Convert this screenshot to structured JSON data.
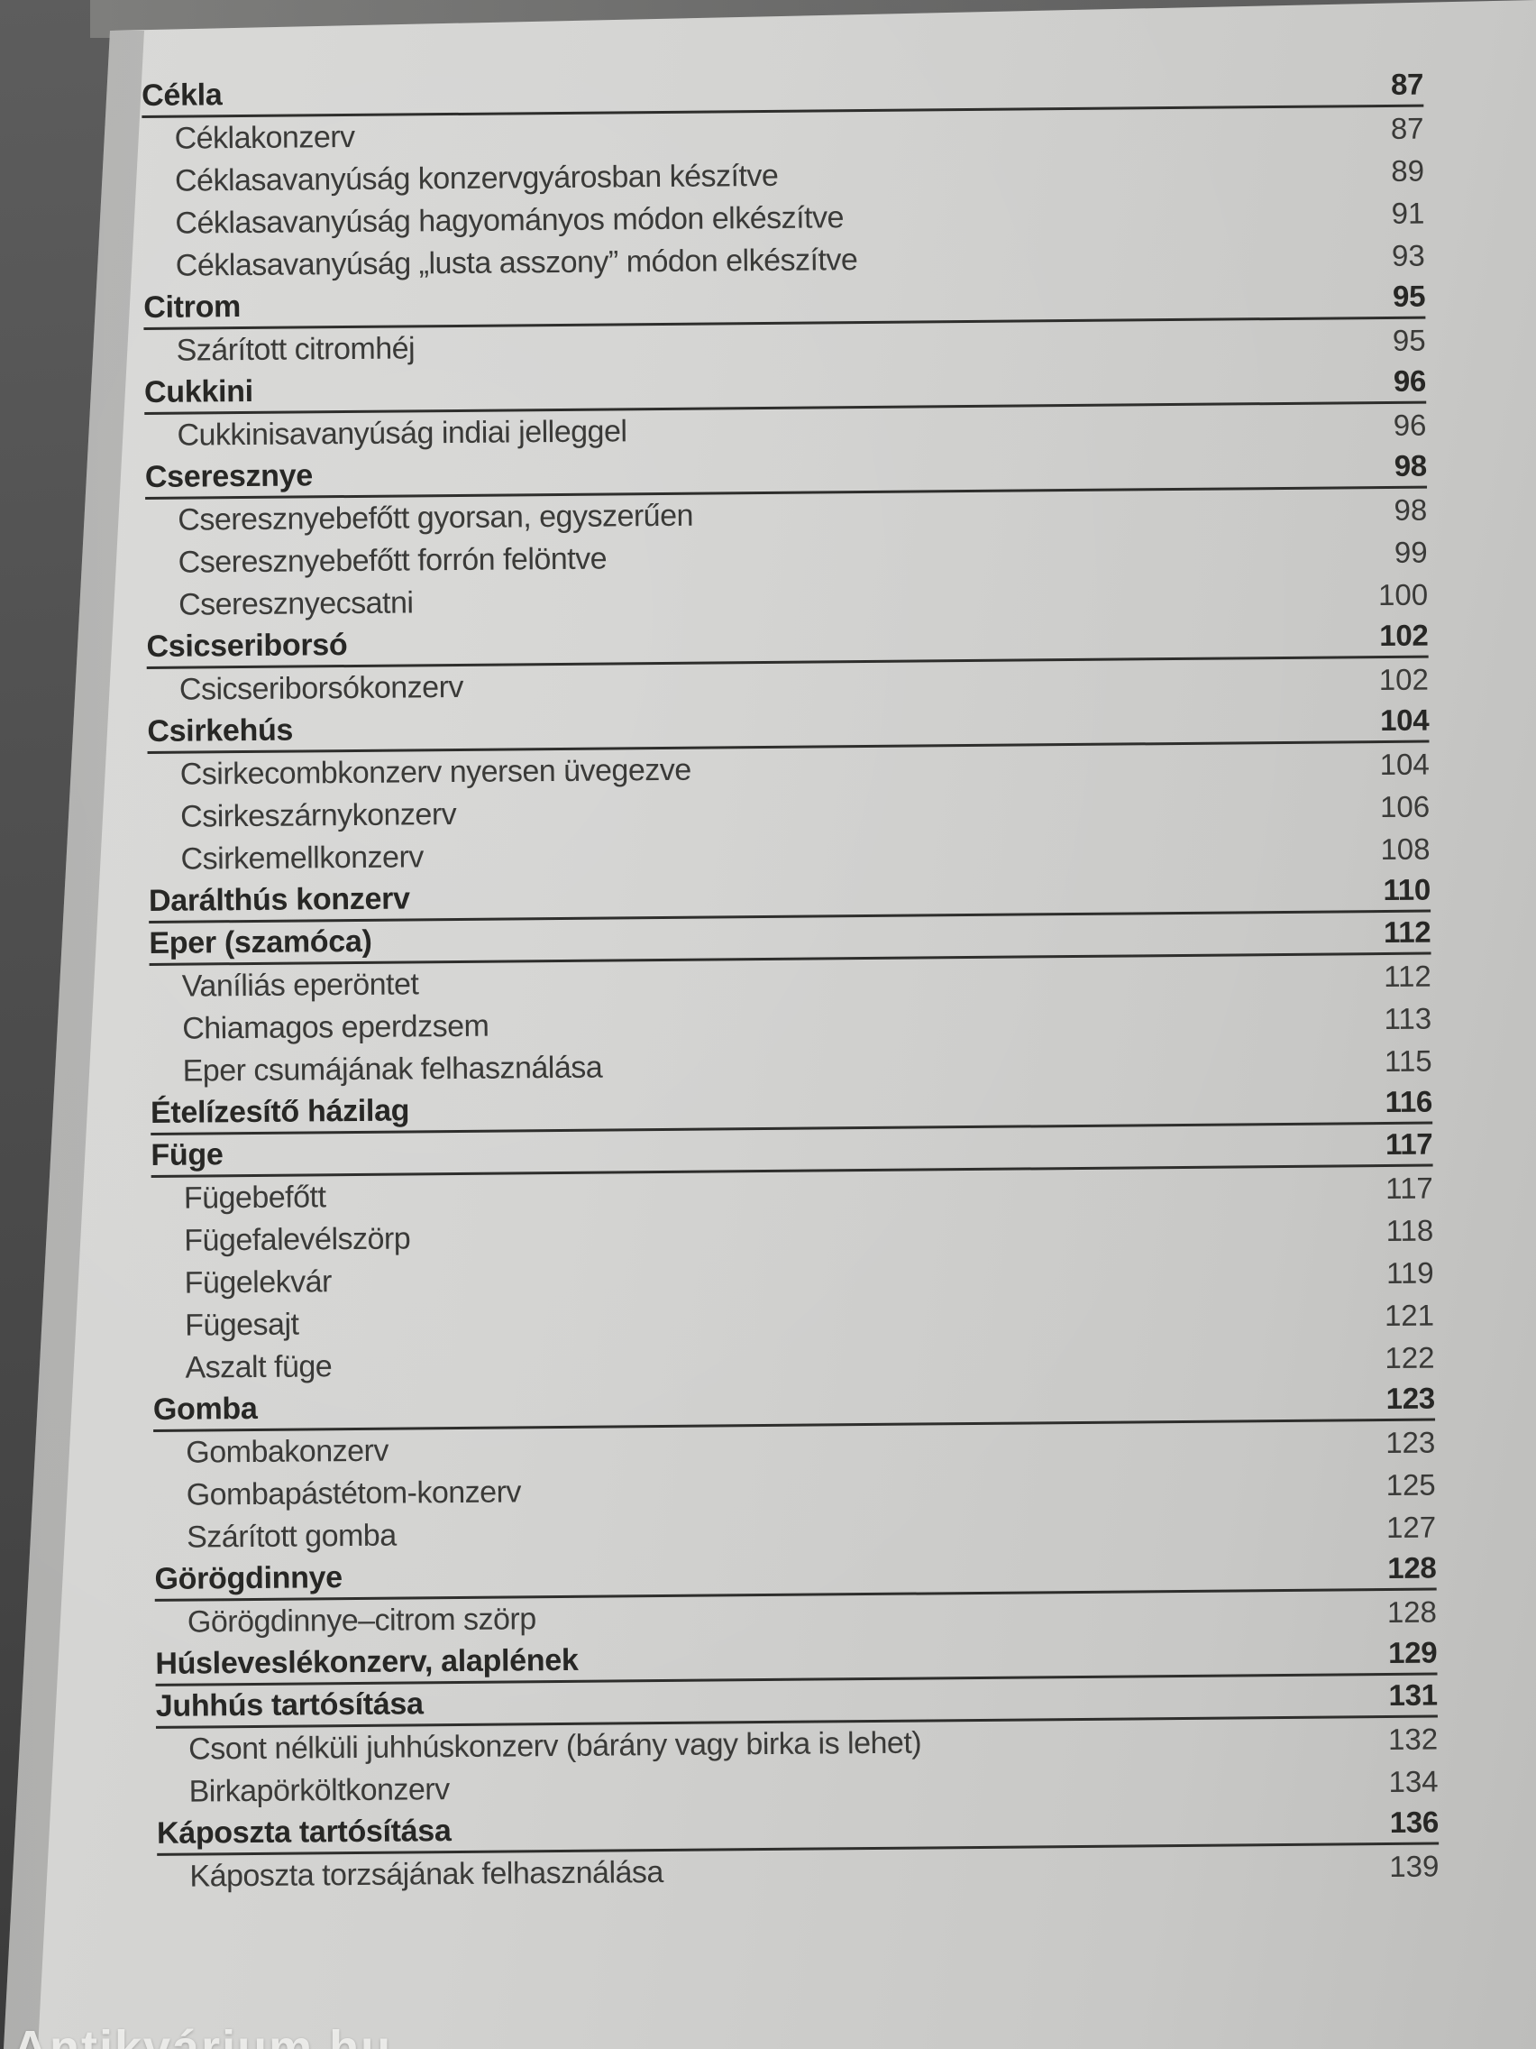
{
  "page": {
    "watermark": "Antikvárium.hu",
    "colors": {
      "backdrop": "#4a4a4a",
      "paper": "#cfcfcd",
      "text": "#3a3a38",
      "rule": "#2e2e2c"
    }
  },
  "toc": {
    "entries": [
      {
        "label": "Cékla",
        "page": "87",
        "level": "header"
      },
      {
        "label": "Céklakonzerv",
        "page": "87",
        "level": "sub"
      },
      {
        "label": "Céklasavanyúság konzervgyárosban készítve",
        "page": "89",
        "level": "sub"
      },
      {
        "label": "Céklasavanyúság hagyományos módon elkészítve",
        "page": "91",
        "level": "sub"
      },
      {
        "label": "Céklasavanyúság „lusta asszony” módon elkészítve",
        "page": "93",
        "level": "sub"
      },
      {
        "label": "Citrom",
        "page": "95",
        "level": "header"
      },
      {
        "label": "Szárított citromhéj",
        "page": "95",
        "level": "sub"
      },
      {
        "label": "Cukkini",
        "page": "96",
        "level": "header"
      },
      {
        "label": "Cukkinisavanyúság indiai jelleggel",
        "page": "96",
        "level": "sub"
      },
      {
        "label": "Cseresznye",
        "page": "98",
        "level": "header"
      },
      {
        "label": "Cseresznyebefőtt gyorsan, egyszerűen",
        "page": "98",
        "level": "sub"
      },
      {
        "label": "Cseresznyebefőtt forrón felöntve",
        "page": "99",
        "level": "sub"
      },
      {
        "label": "Cseresznyecsatni",
        "page": "100",
        "level": "sub"
      },
      {
        "label": "Csicseriborsó",
        "page": "102",
        "level": "header"
      },
      {
        "label": "Csicseriborsókonzerv",
        "page": "102",
        "level": "sub"
      },
      {
        "label": "Csirkehús",
        "page": "104",
        "level": "header"
      },
      {
        "label": "Csirkecombkonzerv nyersen üvegezve",
        "page": "104",
        "level": "sub"
      },
      {
        "label": "Csirkeszárnykonzerv",
        "page": "106",
        "level": "sub"
      },
      {
        "label": "Csirkemellkonzerv",
        "page": "108",
        "level": "sub"
      },
      {
        "label": "Darálthús konzerv",
        "page": "110",
        "level": "header"
      },
      {
        "label": "Eper (szamóca)",
        "page": "112",
        "level": "header"
      },
      {
        "label": "Vaníliás eperöntet",
        "page": "112",
        "level": "sub"
      },
      {
        "label": "Chiamagos eperdzsem",
        "page": "113",
        "level": "sub"
      },
      {
        "label": "Eper csumájának felhasználása",
        "page": "115",
        "level": "sub"
      },
      {
        "label": "Ételízesítő házilag",
        "page": "116",
        "level": "header"
      },
      {
        "label": "Füge",
        "page": "117",
        "level": "header"
      },
      {
        "label": "Fügebefőtt",
        "page": "117",
        "level": "sub"
      },
      {
        "label": "Fügefalevélszörp",
        "page": "118",
        "level": "sub"
      },
      {
        "label": "Fügelekvár",
        "page": "119",
        "level": "sub"
      },
      {
        "label": "Fügesajt",
        "page": "121",
        "level": "sub"
      },
      {
        "label": "Aszalt füge",
        "page": "122",
        "level": "sub"
      },
      {
        "label": "Gomba",
        "page": "123",
        "level": "header"
      },
      {
        "label": "Gombakonzerv",
        "page": "123",
        "level": "sub"
      },
      {
        "label": "Gombapástétom-konzerv",
        "page": "125",
        "level": "sub"
      },
      {
        "label": "Szárított gomba",
        "page": "127",
        "level": "sub"
      },
      {
        "label": "Görögdinnye",
        "page": "128",
        "level": "header"
      },
      {
        "label": "Görögdinnye–citrom szörp",
        "page": "128",
        "level": "sub"
      },
      {
        "label": "Húsleveslékonzerv, alaplének",
        "page": "129",
        "level": "header"
      },
      {
        "label": "Juhhús tartósítása",
        "page": "131",
        "level": "header"
      },
      {
        "label": "Csont nélküli juhhúskonzerv (bárány vagy birka is lehet)",
        "page": "132",
        "level": "sub"
      },
      {
        "label": "Birkapörköltkonzerv",
        "page": "134",
        "level": "sub"
      },
      {
        "label": "Káposzta tartósítása",
        "page": "136",
        "level": "header"
      },
      {
        "label": "Káposzta torzsájának felhasználása",
        "page": "139",
        "level": "sub"
      }
    ]
  }
}
